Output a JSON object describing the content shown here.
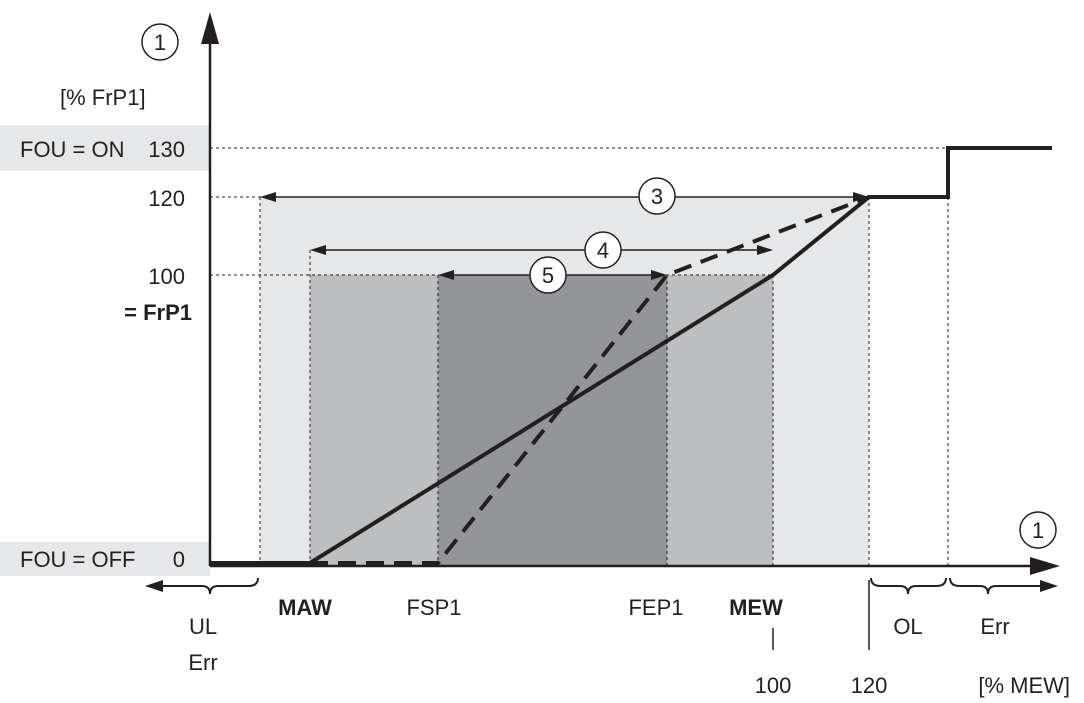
{
  "y_axis": {
    "marker": "1",
    "unit": "[% FrP1]",
    "ticks": [
      "130",
      "120",
      "100",
      "0"
    ],
    "frp1_label": "= FrP1",
    "fou_on": "FOU = ON",
    "fou_off": "FOU = OFF"
  },
  "x_axis": {
    "marker": "1",
    "unit": "[% MEW]",
    "labels": {
      "maw": "MAW",
      "fsp1": "FSP1",
      "fep1": "FEP1",
      "mew": "MEW",
      "mew_value": "100",
      "val_120": "120",
      "ul": "UL",
      "ul_err": "Err",
      "ol": "OL",
      "err": "Err"
    }
  },
  "ranges": {
    "r3": "3",
    "r4": "4",
    "r5": "5"
  },
  "colors": {
    "band_outer": "#e6e7e8",
    "band_mid": "#bcbec0",
    "band_inner": "#939598",
    "fou_bg": "#e6e7e8",
    "line": "#231f20"
  },
  "chart_data": {
    "type": "line",
    "x_units": "% MEW",
    "y_units": "% FrP1",
    "series": [
      {
        "style": "solid",
        "points": [
          [
            "MAW",
            0
          ],
          [
            "MEW",
            100
          ],
          [
            120,
            120
          ]
        ]
      },
      {
        "style": "dashed",
        "points": [
          [
            "MAW",
            0
          ],
          [
            "FSP1",
            0
          ],
          [
            "FEP1",
            100
          ],
          [
            120,
            120
          ]
        ]
      }
    ],
    "output_steps": [
      {
        "range": "OL",
        "y": 120
      },
      {
        "range": "Err",
        "y": 130
      }
    ]
  }
}
